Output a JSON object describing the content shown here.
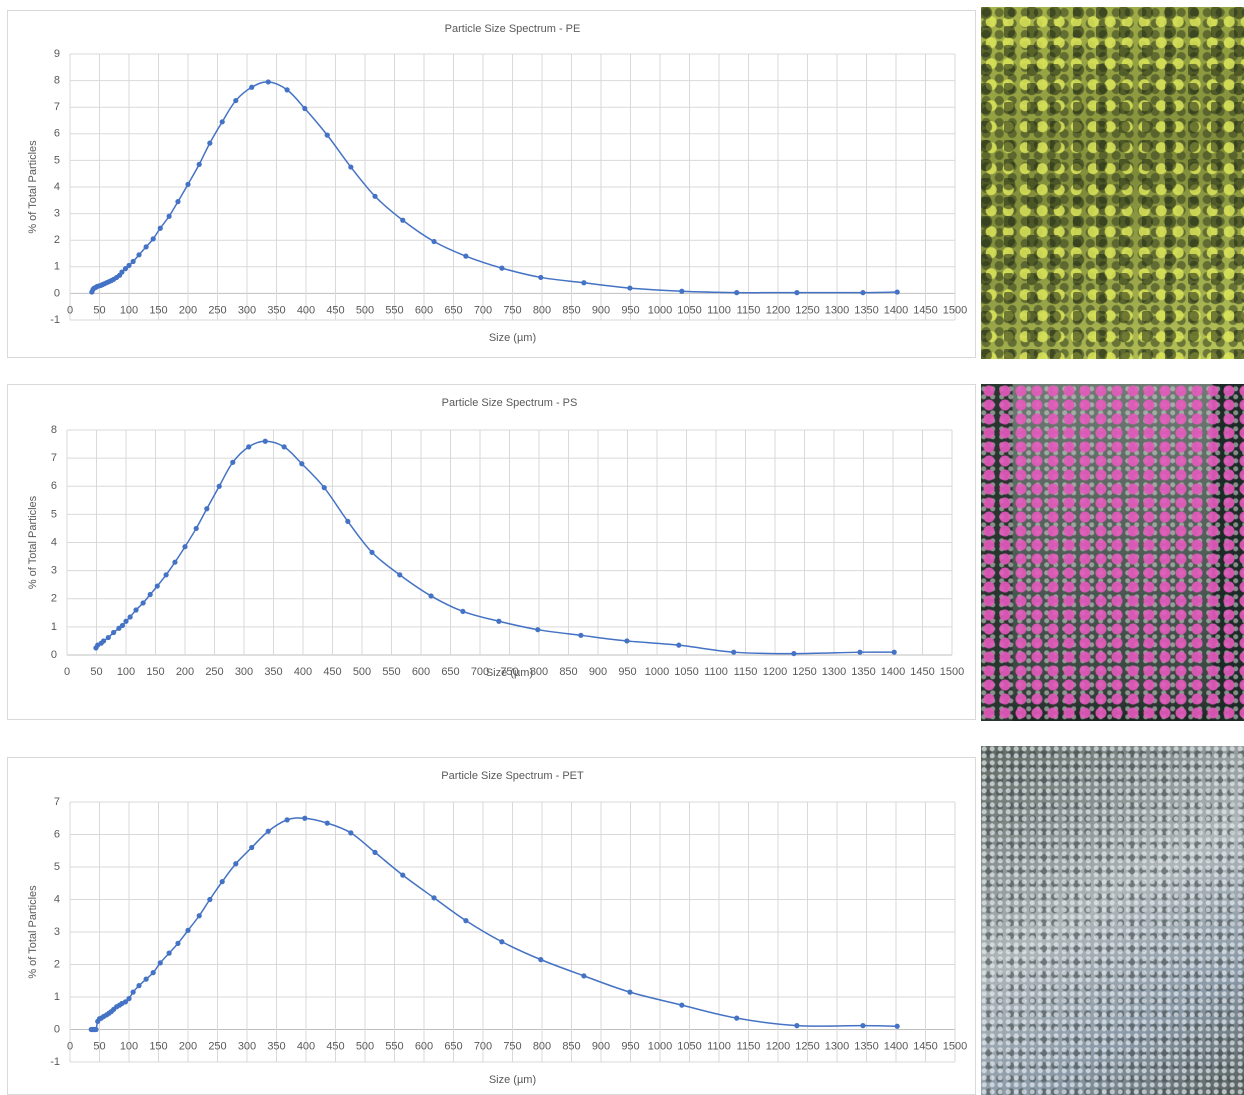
{
  "chart_data": [
    {
      "type": "line",
      "title": "Particle Size Spectrum - PE",
      "x_label": "Size (µm)",
      "y_label": "% of Total Particles",
      "x": [
        37,
        39,
        41,
        44,
        46,
        49,
        52,
        55,
        58,
        62,
        66,
        70,
        74,
        79,
        84,
        88,
        94,
        100,
        107,
        117,
        129,
        141,
        153,
        168,
        183,
        200,
        219,
        237,
        258,
        281,
        308,
        336,
        368,
        398,
        436,
        476,
        517,
        564,
        617,
        671,
        732,
        798,
        871,
        949,
        1037,
        1130,
        1232,
        1344,
        1402
      ],
      "values": [
        0.05,
        0.15,
        0.2,
        0.23,
        0.26,
        0.28,
        0.3,
        0.33,
        0.36,
        0.4,
        0.44,
        0.48,
        0.53,
        0.6,
        0.68,
        0.8,
        0.93,
        1.05,
        1.2,
        1.45,
        1.75,
        2.05,
        2.45,
        2.9,
        3.45,
        4.1,
        4.85,
        5.65,
        6.45,
        7.25,
        7.75,
        7.95,
        7.65,
        6.95,
        5.95,
        4.75,
        3.65,
        2.75,
        1.95,
        1.4,
        0.95,
        0.6,
        0.4,
        0.2,
        0.08,
        0.03,
        0.03,
        0.03,
        0.05
      ],
      "color": "#4472c4",
      "xlim": [
        0,
        1500
      ],
      "ylim": [
        -1,
        9
      ],
      "xticks": [
        0,
        50,
        100,
        150,
        200,
        250,
        300,
        350,
        400,
        450,
        500,
        550,
        600,
        650,
        700,
        750,
        800,
        850,
        900,
        950,
        1000,
        1050,
        1100,
        1150,
        1200,
        1250,
        1300,
        1350,
        1400,
        1450,
        1500
      ],
      "yticks": [
        -1,
        0,
        1,
        2,
        3,
        4,
        5,
        6,
        7,
        8,
        9
      ],
      "grid": true
    },
    {
      "type": "line",
      "title": "Particle Size Spectrum - PS",
      "x_label": "Size (µm)",
      "y_label": "% of Total Particles",
      "x": [
        49,
        52,
        58,
        62,
        70,
        79,
        88,
        94,
        100,
        107,
        117,
        129,
        141,
        153,
        168,
        183,
        200,
        219,
        237,
        258,
        281,
        308,
        336,
        368,
        398,
        436,
        476,
        517,
        564,
        617,
        671,
        732,
        798,
        871,
        949,
        1037,
        1130,
        1232,
        1344,
        1402
      ],
      "values": [
        0.25,
        0.35,
        0.42,
        0.5,
        0.62,
        0.8,
        0.95,
        1.05,
        1.2,
        1.35,
        1.6,
        1.85,
        2.15,
        2.45,
        2.85,
        3.3,
        3.85,
        4.5,
        5.2,
        6.0,
        6.85,
        7.4,
        7.6,
        7.4,
        6.8,
        5.95,
        4.75,
        3.65,
        2.85,
        2.1,
        1.55,
        1.2,
        0.9,
        0.7,
        0.5,
        0.35,
        0.1,
        0.05,
        0.1,
        0.1
      ],
      "color": "#4472c4",
      "xlim": [
        0,
        1500
      ],
      "ylim": [
        0,
        8
      ],
      "xticks": [
        0,
        50,
        100,
        150,
        200,
        250,
        300,
        350,
        400,
        450,
        500,
        550,
        600,
        650,
        700,
        750,
        800,
        850,
        900,
        950,
        1000,
        1050,
        1100,
        1150,
        1200,
        1250,
        1300,
        1350,
        1400,
        1450,
        1500
      ],
      "yticks": [
        0,
        1,
        2,
        3,
        4,
        5,
        6,
        7,
        8
      ],
      "grid": true
    },
    {
      "type": "line",
      "title": "Particle Size Spectrum - PET",
      "x_label": "Size (µm)",
      "y_label": "% of Total Particles",
      "x": [
        36,
        38,
        40,
        42,
        44,
        47,
        50,
        53,
        57,
        62,
        66,
        70,
        74,
        79,
        84,
        88,
        94,
        100,
        107,
        117,
        129,
        141,
        153,
        168,
        183,
        200,
        219,
        237,
        258,
        281,
        308,
        336,
        368,
        398,
        436,
        476,
        517,
        564,
        617,
        671,
        732,
        798,
        871,
        949,
        1037,
        1130,
        1232,
        1344,
        1402
      ],
      "values": [
        0,
        0,
        0,
        0,
        0,
        0.25,
        0.33,
        0.35,
        0.4,
        0.45,
        0.5,
        0.55,
        0.62,
        0.7,
        0.75,
        0.8,
        0.85,
        0.95,
        1.15,
        1.35,
        1.55,
        1.75,
        2.05,
        2.35,
        2.65,
        3.05,
        3.5,
        4.0,
        4.55,
        5.1,
        5.6,
        6.1,
        6.45,
        6.5,
        6.35,
        6.05,
        5.45,
        4.75,
        4.05,
        3.35,
        2.7,
        2.15,
        1.65,
        1.15,
        0.75,
        0.35,
        0.12,
        0.12,
        0.1
      ],
      "color": "#4472c4",
      "xlim": [
        0,
        1500
      ],
      "ylim": [
        -1,
        7
      ],
      "xticks": [
        0,
        50,
        100,
        150,
        200,
        250,
        300,
        350,
        400,
        450,
        500,
        550,
        600,
        650,
        700,
        750,
        800,
        850,
        900,
        950,
        1000,
        1050,
        1100,
        1150,
        1200,
        1250,
        1300,
        1350,
        1400,
        1450,
        1500
      ],
      "yticks": [
        -1,
        0,
        1,
        2,
        3,
        4,
        5,
        6,
        7
      ],
      "grid": true
    }
  ]
}
